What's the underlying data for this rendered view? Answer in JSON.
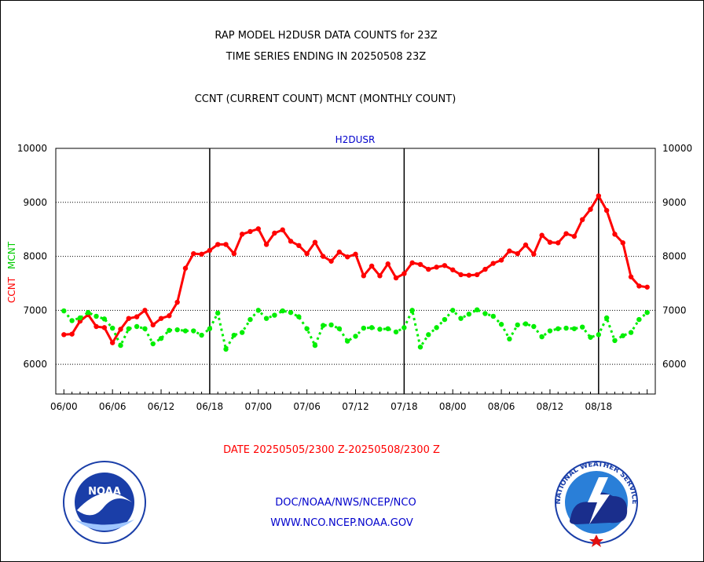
{
  "header": {
    "line1": "RAP MODEL H2DUSR DATA COUNTS for 23Z",
    "line2": "TIME SERIES ENDING IN 20250508 23Z",
    "line3": "CCNT (CURRENT COUNT) MCNT (MONTHLY COUNT)"
  },
  "footer": {
    "date_range": "DATE 20250505/2300 Z-20250508/2300 Z",
    "org": "DOC/NOAA/NWS/NCEP/NCO",
    "url": "WWW.NCO.NCEP.NOAA.GOV"
  },
  "logos": {
    "noaa_text": "NOAA",
    "nws_text": "NATIONAL WEATHER SERVICE"
  },
  "colors": {
    "ccnt": "#ff0000",
    "mcnt": "#00ee00",
    "title_blue": "#0000cc"
  },
  "chart_data": {
    "type": "line",
    "title": "H2DUSR",
    "ylabel_left": [
      "CCNT",
      "MCNT"
    ],
    "ylim": [
      5450,
      10000
    ],
    "yticks": [
      6000,
      7000,
      8000,
      9000,
      10000
    ],
    "xlim": [
      -1,
      73
    ],
    "xticks": [
      {
        "x": 0,
        "label": "06/00"
      },
      {
        "x": 6,
        "label": "06/06"
      },
      {
        "x": 12,
        "label": "06/12"
      },
      {
        "x": 18,
        "label": "06/18"
      },
      {
        "x": 24,
        "label": "07/00"
      },
      {
        "x": 30,
        "label": "07/06"
      },
      {
        "x": 36,
        "label": "07/12"
      },
      {
        "x": 42,
        "label": "07/18"
      },
      {
        "x": 48,
        "label": "08/00"
      },
      {
        "x": 54,
        "label": "08/06"
      },
      {
        "x": 60,
        "label": "08/12"
      },
      {
        "x": 66,
        "label": "08/18"
      }
    ],
    "day_boundaries": [
      18,
      42,
      66
    ],
    "grid": true,
    "series": [
      {
        "name": "CCNT",
        "style": "solid",
        "values": [
          6550,
          6560,
          6800,
          6920,
          6700,
          6680,
          6400,
          6650,
          6850,
          6880,
          7000,
          6730,
          6850,
          6900,
          7150,
          7780,
          8050,
          8040,
          8110,
          8220,
          8220,
          8050,
          8410,
          8460,
          8510,
          8220,
          8430,
          8490,
          8280,
          8200,
          8050,
          8260,
          8000,
          7910,
          8080,
          7990,
          8040,
          7640,
          7820,
          7640,
          7860,
          7600,
          7680,
          7880,
          7850,
          7760,
          7800,
          7830,
          7750,
          7660,
          7650,
          7660,
          7760,
          7870,
          7930,
          8100,
          8050,
          8210,
          8040,
          8390,
          8260,
          8250,
          8420,
          8370,
          8680,
          8870,
          9120,
          8850,
          8410,
          8250,
          7620,
          7450,
          7430
        ]
      },
      {
        "name": "MCNT",
        "style": "dotted",
        "values": [
          6990,
          6810,
          6860,
          6960,
          6890,
          6840,
          6670,
          6350,
          6660,
          6700,
          6660,
          6380,
          6480,
          6630,
          6640,
          6620,
          6620,
          6540,
          6660,
          6950,
          6280,
          6540,
          6590,
          6830,
          7000,
          6850,
          6910,
          6990,
          6960,
          6880,
          6660,
          6350,
          6720,
          6730,
          6660,
          6430,
          6520,
          6670,
          6680,
          6650,
          6660,
          6600,
          6680,
          7000,
          6320,
          6550,
          6680,
          6830,
          7000,
          6850,
          6930,
          7010,
          6940,
          6890,
          6740,
          6470,
          6730,
          6750,
          6700,
          6510,
          6620,
          6660,
          6670,
          6660,
          6690,
          6500,
          6550,
          6860,
          6440,
          6530,
          6590,
          6830,
          6960
        ]
      }
    ]
  }
}
